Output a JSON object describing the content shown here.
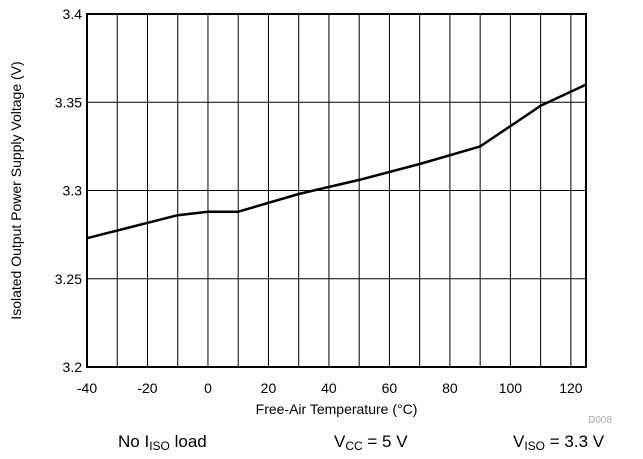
{
  "chart_data": {
    "type": "line",
    "title": "",
    "xlabel": "Free-Air Temperature (°C)",
    "ylabel": "Isolated Output Power Supply Voltage (V)",
    "xlim": [
      -40,
      125
    ],
    "ylim": [
      3.2,
      3.4
    ],
    "xticks": [
      "-40",
      "-20",
      "0",
      "20",
      "40",
      "60",
      "80",
      "100",
      "120"
    ],
    "yticks": [
      "3.2",
      "3.25",
      "3.3",
      "3.35",
      "3.4"
    ],
    "grid": true,
    "series": [
      {
        "x": [
          -40,
          -10,
          0,
          10,
          30,
          50,
          70,
          90,
          110,
          125
        ],
        "y": [
          3.273,
          3.286,
          3.288,
          3.288,
          3.298,
          3.306,
          3.315,
          3.325,
          3.348,
          3.36
        ]
      }
    ],
    "tag": "D008"
  },
  "conditions": {
    "load": {
      "pre": "No I",
      "sub": "ISO",
      "post": " load"
    },
    "vcc": {
      "pre": "V",
      "sub": "CC",
      "post": " = 5 V"
    },
    "viso": {
      "pre": "V",
      "sub": "ISO",
      "post": " = 3.3 V"
    }
  },
  "colors": {
    "line": "#000000",
    "grid": "#000000",
    "tag": "#a8a8a8"
  }
}
